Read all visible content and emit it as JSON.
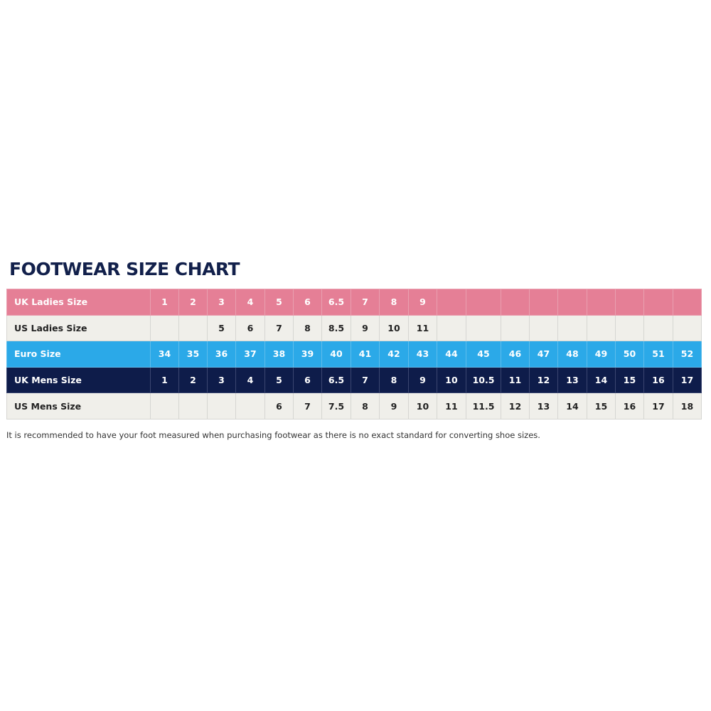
{
  "title": "FOOTWEAR SIZE CHART",
  "colors": {
    "uk_ladies": "#e57f96",
    "us_rows": "#f0efea",
    "euro": "#2ba9e8",
    "uk_mens": "#0e1c4a",
    "title": "#12204b"
  },
  "rows": [
    {
      "label": "UK Ladies Size",
      "values": [
        "1",
        "2",
        "3",
        "4",
        "5",
        "6",
        "6.5",
        "7",
        "8",
        "9",
        "",
        "",
        "",
        "",
        "",
        "",
        "",
        "",
        ""
      ]
    },
    {
      "label": "US Ladies Size",
      "values": [
        "",
        "",
        "5",
        "6",
        "7",
        "8",
        "8.5",
        "9",
        "10",
        "11",
        "",
        "",
        "",
        "",
        "",
        "",
        "",
        "",
        ""
      ]
    },
    {
      "label": "Euro Size",
      "values": [
        "34",
        "35",
        "36",
        "37",
        "38",
        "39",
        "40",
        "41",
        "42",
        "43",
        "44",
        "45",
        "46",
        "47",
        "48",
        "49",
        "50",
        "51",
        "52"
      ]
    },
    {
      "label": "UK Mens Size",
      "values": [
        "1",
        "2",
        "3",
        "4",
        "5",
        "6",
        "6.5",
        "7",
        "8",
        "9",
        "10",
        "10.5",
        "11",
        "12",
        "13",
        "14",
        "15",
        "16",
        "17"
      ]
    },
    {
      "label": "US Mens Size",
      "values": [
        "",
        "",
        "",
        "",
        "6",
        "7",
        "7.5",
        "8",
        "9",
        "10",
        "11",
        "11.5",
        "12",
        "13",
        "14",
        "15",
        "16",
        "17",
        "18"
      ]
    }
  ],
  "note": "It is recommended to have your foot measured when purchasing footwear as there is no exact standard for converting shoe sizes."
}
